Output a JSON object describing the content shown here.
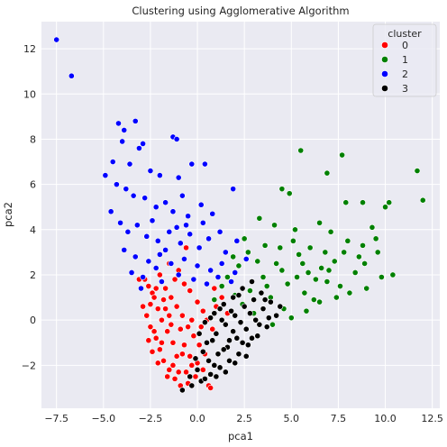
{
  "chart_data": {
    "type": "scatter",
    "title": "Clustering using Agglomerative Algorithm",
    "xlabel": "pca1",
    "ylabel": "pca2",
    "xlim": [
      -8.3,
      12.9
    ],
    "ylim": [
      -3.9,
      13.2
    ],
    "xticks": [
      -7.5,
      -5.0,
      -2.5,
      0.0,
      2.5,
      5.0,
      7.5,
      10.0,
      12.5
    ],
    "xtick_labels": [
      "−7.5",
      "−5.0",
      "−2.5",
      "0.0",
      "2.5",
      "5.0",
      "7.5",
      "10.0",
      "12.5"
    ],
    "yticks": [
      -2,
      0,
      2,
      4,
      6,
      8,
      10,
      12
    ],
    "ytick_labels": [
      "−2",
      "0",
      "2",
      "4",
      "6",
      "8",
      "10",
      "12"
    ],
    "grid": true,
    "legend": {
      "title": "cluster",
      "placement": "top-right"
    },
    "series": [
      {
        "name": "0",
        "color": "#ff0000",
        "points": [
          [
            -2.8,
            1.8
          ],
          [
            -2.6,
            1.5
          ],
          [
            -2.4,
            1.2
          ],
          [
            -2.9,
            0.6
          ],
          [
            -2.7,
            0.2
          ],
          [
            -2.5,
            -0.3
          ],
          [
            -2.2,
            -0.8
          ],
          [
            -2.0,
            -1.3
          ],
          [
            -1.8,
            -1.8
          ],
          [
            -1.5,
            -2.2
          ],
          [
            -1.2,
            -2.6
          ],
          [
            -0.9,
            -2.9
          ],
          [
            -0.5,
            -2.8
          ],
          [
            -0.1,
            -2.5
          ],
          [
            0.3,
            -2.2
          ],
          [
            0.6,
            -2.9
          ],
          [
            0.7,
            -3.0
          ],
          [
            -0.3,
            -2.0
          ],
          [
            -0.8,
            -1.5
          ],
          [
            -1.3,
            -1.0
          ],
          [
            -1.6,
            -0.5
          ],
          [
            -1.9,
            0.0
          ],
          [
            -2.1,
            0.5
          ],
          [
            -2.3,
            1.0
          ],
          [
            -1.7,
            1.4
          ],
          [
            -1.4,
            1.0
          ],
          [
            -1.1,
            0.6
          ],
          [
            -0.8,
            0.2
          ],
          [
            -0.5,
            -0.3
          ],
          [
            -0.2,
            -0.7
          ],
          [
            0.1,
            -1.1
          ],
          [
            0.4,
            -1.5
          ],
          [
            -1.0,
            2.2
          ],
          [
            -1.5,
            2.5
          ],
          [
            -0.6,
            3.2
          ],
          [
            -0.4,
            1.3
          ],
          [
            0.0,
            0.8
          ],
          [
            0.3,
            0.4
          ],
          [
            0.5,
            0.0
          ],
          [
            0.8,
            -0.4
          ],
          [
            -2.0,
            2.0
          ],
          [
            -1.2,
            1.8
          ],
          [
            -0.7,
            1.6
          ],
          [
            -2.4,
            -1.4
          ],
          [
            -2.6,
            -0.9
          ],
          [
            -1.0,
            -2.3
          ],
          [
            -0.6,
            -2.3
          ],
          [
            -2.1,
            -1.9
          ],
          [
            -1.6,
            -2.5
          ],
          [
            -1.3,
            -2.0
          ],
          [
            -0.9,
            -0.4
          ],
          [
            -1.5,
            0.2
          ],
          [
            -1.8,
            0.9
          ],
          [
            -2.2,
            1.4
          ],
          [
            -0.3,
            0.0
          ],
          [
            0.2,
            -0.3
          ],
          [
            -0.7,
            -1.1
          ],
          [
            -1.1,
            -1.6
          ],
          [
            1.0,
            0.6
          ],
          [
            1.3,
            1.0
          ],
          [
            0.9,
            1.4
          ],
          [
            1.6,
            0.3
          ],
          [
            -3.1,
            1.8
          ],
          [
            -2.5,
            0.7
          ],
          [
            -1.4,
            -0.2
          ],
          [
            -0.4,
            -1.6
          ],
          [
            0.0,
            -1.9
          ],
          [
            -2.3,
            -0.5
          ],
          [
            -1.9,
            -1.0
          ],
          [
            -1.7,
            0.5
          ]
        ]
      },
      {
        "name": "1",
        "color": "#008000",
        "points": [
          [
            5.5,
            7.5
          ],
          [
            7.7,
            7.3
          ],
          [
            6.9,
            6.5
          ],
          [
            11.7,
            6.6
          ],
          [
            12.0,
            5.3
          ],
          [
            4.5,
            5.8
          ],
          [
            4.9,
            5.6
          ],
          [
            7.9,
            5.2
          ],
          [
            8.8,
            5.2
          ],
          [
            10.0,
            5.0
          ],
          [
            10.2,
            5.2
          ],
          [
            9.3,
            4.1
          ],
          [
            6.5,
            4.3
          ],
          [
            7.1,
            3.9
          ],
          [
            5.2,
            4.0
          ],
          [
            8.0,
            3.5
          ],
          [
            8.8,
            3.3
          ],
          [
            9.5,
            3.6
          ],
          [
            6.0,
            3.2
          ],
          [
            7.3,
            2.6
          ],
          [
            6.6,
            2.3
          ],
          [
            5.4,
            2.9
          ],
          [
            4.2,
            2.5
          ],
          [
            3.5,
            1.9
          ],
          [
            4.8,
            1.6
          ],
          [
            5.7,
            1.2
          ],
          [
            6.9,
            1.7
          ],
          [
            8.4,
            2.1
          ],
          [
            7.6,
            1.5
          ],
          [
            6.2,
            0.9
          ],
          [
            4.6,
            0.5
          ],
          [
            3.9,
            1.0
          ],
          [
            2.8,
            1.3
          ],
          [
            3.2,
            2.6
          ],
          [
            2.5,
            3.6
          ],
          [
            2.2,
            2.4
          ],
          [
            1.6,
            1.9
          ],
          [
            2.0,
            1.1
          ],
          [
            3.0,
            0.3
          ],
          [
            4.0,
            -0.2
          ],
          [
            5.0,
            0.1
          ],
          [
            5.8,
            0.4
          ],
          [
            6.5,
            0.8
          ],
          [
            7.4,
            1.0
          ],
          [
            8.1,
            1.2
          ],
          [
            9.0,
            1.4
          ],
          [
            9.8,
            1.9
          ],
          [
            8.6,
            2.8
          ],
          [
            5.9,
            2.1
          ],
          [
            4.4,
            3.2
          ],
          [
            3.6,
            3.3
          ],
          [
            5.1,
            3.5
          ],
          [
            6.8,
            3.0
          ],
          [
            7.8,
            3.0
          ],
          [
            4.1,
            4.2
          ],
          [
            3.3,
            4.5
          ],
          [
            2.7,
            3.0
          ],
          [
            1.9,
            2.8
          ],
          [
            1.3,
            1.5
          ],
          [
            0.9,
            0.9
          ],
          [
            3.7,
            1.5
          ],
          [
            4.5,
            2.2
          ],
          [
            5.6,
            2.5
          ],
          [
            6.3,
            1.8
          ],
          [
            7.0,
            2.2
          ],
          [
            8.9,
            2.5
          ],
          [
            10.4,
            2.0
          ],
          [
            9.6,
            3.0
          ],
          [
            5.3,
            1.9
          ],
          [
            2.4,
            0.7
          ]
        ]
      },
      {
        "name": "2",
        "color": "#0000ff",
        "points": [
          [
            -7.5,
            12.4
          ],
          [
            -6.7,
            10.8
          ],
          [
            -4.2,
            8.7
          ],
          [
            -3.9,
            8.4
          ],
          [
            -3.3,
            8.8
          ],
          [
            -4.0,
            7.9
          ],
          [
            -3.1,
            7.6
          ],
          [
            -2.9,
            7.8
          ],
          [
            -1.3,
            8.1
          ],
          [
            -1.1,
            8.0
          ],
          [
            -0.3,
            6.9
          ],
          [
            0.4,
            6.9
          ],
          [
            -4.5,
            7.0
          ],
          [
            -3.6,
            6.9
          ],
          [
            -2.5,
            6.6
          ],
          [
            -2.0,
            6.4
          ],
          [
            -1.0,
            6.3
          ],
          [
            -4.9,
            6.4
          ],
          [
            -4.3,
            6.0
          ],
          [
            -3.8,
            5.8
          ],
          [
            -3.4,
            5.5
          ],
          [
            -2.8,
            5.4
          ],
          [
            -2.2,
            5.0
          ],
          [
            -1.7,
            5.2
          ],
          [
            -1.3,
            4.8
          ],
          [
            -0.8,
            5.5
          ],
          [
            -0.5,
            4.6
          ],
          [
            0.2,
            5.1
          ],
          [
            0.8,
            4.7
          ],
          [
            1.9,
            5.8
          ],
          [
            -4.6,
            4.8
          ],
          [
            -4.1,
            4.3
          ],
          [
            -3.7,
            3.9
          ],
          [
            -3.2,
            4.2
          ],
          [
            -2.7,
            3.7
          ],
          [
            -2.1,
            3.5
          ],
          [
            -1.5,
            3.9
          ],
          [
            -0.9,
            3.4
          ],
          [
            -0.4,
            3.8
          ],
          [
            0.1,
            3.2
          ],
          [
            0.6,
            3.6
          ],
          [
            1.2,
            3.9
          ],
          [
            1.5,
            3.0
          ],
          [
            2.1,
            3.5
          ],
          [
            2.6,
            2.7
          ],
          [
            -3.9,
            3.1
          ],
          [
            -3.3,
            2.8
          ],
          [
            -2.6,
            2.6
          ],
          [
            -2.0,
            2.9
          ],
          [
            -1.4,
            2.5
          ],
          [
            -0.7,
            2.7
          ],
          [
            0.0,
            2.4
          ],
          [
            0.7,
            2.2
          ],
          [
            1.3,
            2.5
          ],
          [
            2.0,
            2.1
          ],
          [
            -3.5,
            2.1
          ],
          [
            -2.9,
            1.9
          ],
          [
            -1.9,
            1.7
          ],
          [
            -1.0,
            2.0
          ],
          [
            -0.2,
            1.8
          ],
          [
            0.5,
            1.6
          ],
          [
            1.1,
            1.9
          ],
          [
            1.8,
            1.7
          ],
          [
            -3.0,
            1.4
          ],
          [
            -2.2,
            2.3
          ],
          [
            -1.7,
            3.1
          ],
          [
            -0.6,
            4.2
          ],
          [
            -2.4,
            4.4
          ],
          [
            -1.1,
            4.1
          ],
          [
            0.3,
            4.3
          ]
        ]
      },
      {
        "name": "3",
        "color": "#000000",
        "points": [
          [
            -0.8,
            -3.1
          ],
          [
            -0.3,
            -2.9
          ],
          [
            0.2,
            -2.7
          ],
          [
            0.7,
            -2.4
          ],
          [
            1.2,
            -2.1
          ],
          [
            1.7,
            -1.8
          ],
          [
            2.2,
            -1.5
          ],
          [
            2.7,
            -1.1
          ],
          [
            3.2,
            -0.7
          ],
          [
            3.7,
            -0.3
          ],
          [
            4.2,
            0.2
          ],
          [
            3.9,
            0.8
          ],
          [
            3.4,
            1.2
          ],
          [
            2.9,
            1.7
          ],
          [
            2.4,
            1.4
          ],
          [
            1.9,
            1.0
          ],
          [
            1.4,
            0.7
          ],
          [
            0.9,
            0.3
          ],
          [
            0.4,
            -0.1
          ],
          [
            0.1,
            -0.6
          ],
          [
            0.5,
            -1.0
          ],
          [
            1.0,
            -0.6
          ],
          [
            1.5,
            -0.2
          ],
          [
            2.0,
            0.2
          ],
          [
            2.5,
            0.6
          ],
          [
            3.0,
            0.9
          ],
          [
            3.5,
            0.5
          ],
          [
            3.1,
            0.0
          ],
          [
            2.6,
            -0.4
          ],
          [
            2.1,
            -0.8
          ],
          [
            1.6,
            -1.2
          ],
          [
            1.1,
            -1.5
          ],
          [
            0.6,
            -1.8
          ],
          [
            0.0,
            -2.2
          ],
          [
            -0.4,
            -2.5
          ],
          [
            1.3,
            0.0
          ],
          [
            1.8,
            0.4
          ],
          [
            2.3,
            -0.1
          ],
          [
            2.8,
            0.3
          ],
          [
            3.3,
            -0.2
          ],
          [
            0.8,
            -0.9
          ],
          [
            1.4,
            -1.3
          ],
          [
            1.9,
            -0.5
          ],
          [
            2.4,
            -1.0
          ],
          [
            0.3,
            -1.4
          ],
          [
            -0.1,
            -1.7
          ],
          [
            0.9,
            -2.0
          ],
          [
            1.5,
            -2.3
          ],
          [
            2.0,
            -1.9
          ],
          [
            2.6,
            -1.6
          ],
          [
            3.6,
            0.9
          ],
          [
            4.4,
            0.6
          ],
          [
            2.2,
            1.1
          ],
          [
            1.2,
            0.5
          ],
          [
            0.7,
            0.1
          ],
          [
            2.9,
            -0.8
          ],
          [
            3.8,
            0.1
          ],
          [
            1.7,
            -0.9
          ],
          [
            1.0,
            -2.5
          ],
          [
            0.4,
            -2.6
          ]
        ]
      }
    ]
  }
}
